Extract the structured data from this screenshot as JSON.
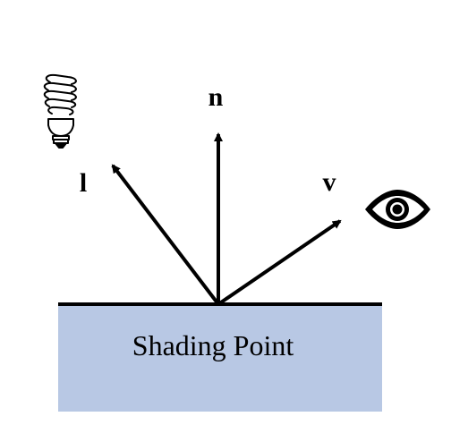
{
  "diagram": {
    "vectors": {
      "light": {
        "label": "l"
      },
      "normal": {
        "label": "n"
      },
      "view": {
        "label": "v"
      }
    },
    "surface": {
      "label": "Shading Point",
      "color": "#b8c8e4"
    },
    "icons": {
      "light_source": "lightbulb-icon",
      "viewer": "eye-icon"
    },
    "stroke_color": "#000000"
  }
}
